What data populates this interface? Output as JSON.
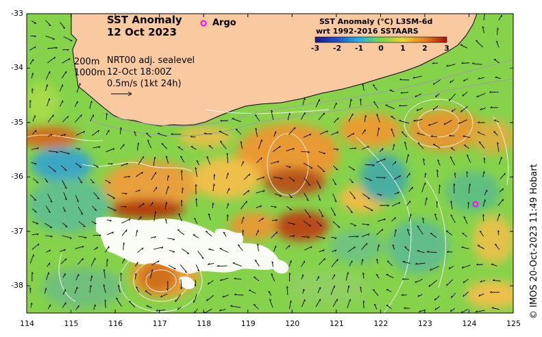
{
  "title": {
    "line1": "SST Anomaly",
    "line2": "12 Oct 2023"
  },
  "argo_legend": "Argo",
  "overlay": {
    "depth1": "200m",
    "depth2": "1000m",
    "sealevel": "NRT00 adj. sealevel",
    "time": "12-Oct 18:00Z",
    "velocity_scale": "0.5m/s (1kt 24h)"
  },
  "colorbar": {
    "title1": "SST Anomaly (°C) L3SM-6d",
    "title2": "wrt 1992-2016 SSTAARS",
    "ticks": [
      "-3",
      "-2",
      "-1",
      "0",
      "1",
      "2",
      "3"
    ],
    "min": -3,
    "max": 3
  },
  "axes": {
    "x_ticks": [
      "114",
      "115",
      "116",
      "117",
      "118",
      "119",
      "120",
      "121",
      "122",
      "123",
      "124",
      "125"
    ],
    "y_ticks": [
      "-33",
      "-34",
      "-35",
      "-36",
      "-37",
      "-38"
    ],
    "x_range": [
      114,
      125
    ],
    "y_range": [
      -38.5,
      -33
    ]
  },
  "argo_float": {
    "lon": 124.15,
    "lat": -36.5
  },
  "credit": "© IMOS 20-Oct-2023 11:49 Hobart",
  "colors": {
    "land": "#f9c9a0",
    "argo": "#ff00ff",
    "no_data": "#ffffff",
    "anomaly_warm": "#f29a2e",
    "anomaly_neutral": "#8fd94a",
    "anomaly_cool": "#2aa6c9"
  }
}
